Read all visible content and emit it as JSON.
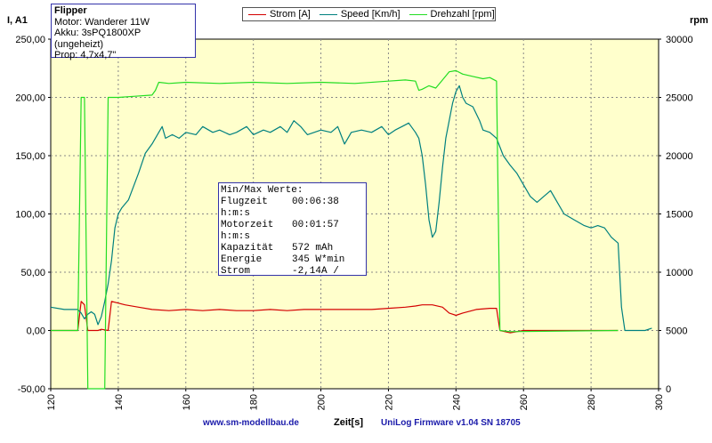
{
  "info": {
    "title": "Flipper",
    "line1": "Motor: Wanderer 11W",
    "line2": "Akku: 3sPQ1800XP (ungeheizt)",
    "line3": "Prop: 4,7x4,7\""
  },
  "legend": [
    {
      "label": "Strom [A]",
      "color": "#d40000"
    },
    {
      "label": "Speed [Km/h]",
      "color": "#00807f"
    },
    {
      "label": "Drehzahl [rpm]",
      "color": "#22dd22"
    }
  ],
  "stats": {
    "title": "Min/Max Werte:",
    "rows": [
      {
        "label": "Flugzeit",
        "value": "00:06:38"
      },
      {
        "label": "h:m:s",
        "value": ""
      },
      {
        "label": "Motorzeit",
        "value": "00:01:57"
      },
      {
        "label": "h:m:s",
        "value": ""
      },
      {
        "label": "Kapazität",
        "value": "572 mAh"
      },
      {
        "label": "Energie",
        "value": "345 W*min"
      },
      {
        "label": "Strom",
        "value": "-2,14A /"
      }
    ]
  },
  "footer": {
    "left": "www.sm-modellbau.de",
    "right": "UniLog Firmware v1.04 SN 18705"
  },
  "chart_data": {
    "type": "line",
    "xlabel": "Zeit[s]",
    "ylabel_left": "I, A1",
    "ylabel_right": "rpm",
    "xlim": [
      120,
      300
    ],
    "ylim_left": [
      -50,
      250
    ],
    "ylim_right": [
      0,
      30000
    ],
    "x_ticks": [
      120,
      140,
      160,
      180,
      200,
      220,
      240,
      260,
      280,
      300
    ],
    "y_ticks_left": [
      "-50,00",
      "0,00",
      "50,00",
      "100,00",
      "150,00",
      "200,00",
      "250,00"
    ],
    "y_ticks_right": [
      "0",
      "5000",
      "10000",
      "15000",
      "20000",
      "25000",
      "30000"
    ],
    "grid": true,
    "legend_position": "top-center",
    "series": [
      {
        "name": "Strom [A]",
        "axis": "left",
        "color": "#d40000",
        "points": [
          [
            120,
            0
          ],
          [
            128,
            0
          ],
          [
            129,
            25
          ],
          [
            130,
            22
          ],
          [
            131,
            0
          ],
          [
            134,
            0
          ],
          [
            135,
            1
          ],
          [
            137,
            0
          ],
          [
            138,
            25
          ],
          [
            142,
            22
          ],
          [
            146,
            20
          ],
          [
            150,
            18
          ],
          [
            155,
            17
          ],
          [
            160,
            18
          ],
          [
            165,
            17
          ],
          [
            170,
            18
          ],
          [
            175,
            17
          ],
          [
            180,
            17
          ],
          [
            185,
            18
          ],
          [
            190,
            17
          ],
          [
            195,
            18
          ],
          [
            200,
            18
          ],
          [
            205,
            18
          ],
          [
            210,
            18
          ],
          [
            215,
            18
          ],
          [
            220,
            19
          ],
          [
            225,
            20
          ],
          [
            228,
            21
          ],
          [
            230,
            22
          ],
          [
            233,
            22
          ],
          [
            236,
            20
          ],
          [
            238,
            15
          ],
          [
            240,
            13
          ],
          [
            242,
            15
          ],
          [
            246,
            18
          ],
          [
            250,
            19
          ],
          [
            252,
            19
          ],
          [
            253,
            0
          ],
          [
            256,
            -2
          ],
          [
            260,
            0
          ],
          [
            270,
            0
          ],
          [
            280,
            0
          ],
          [
            288,
            0
          ]
        ]
      },
      {
        "name": "Speed [Km/h]",
        "axis": "left",
        "color": "#00807f",
        "points": [
          [
            120,
            20
          ],
          [
            124,
            18
          ],
          [
            128,
            18
          ],
          [
            129,
            15
          ],
          [
            130,
            10
          ],
          [
            131,
            14
          ],
          [
            132,
            16
          ],
          [
            133,
            14
          ],
          [
            134,
            5
          ],
          [
            135,
            12
          ],
          [
            136,
            25
          ],
          [
            137,
            40
          ],
          [
            138,
            60
          ],
          [
            139,
            88
          ],
          [
            140,
            100
          ],
          [
            141,
            105
          ],
          [
            143,
            112
          ],
          [
            146,
            135
          ],
          [
            148,
            152
          ],
          [
            150,
            160
          ],
          [
            152,
            170
          ],
          [
            153,
            175
          ],
          [
            154,
            165
          ],
          [
            156,
            168
          ],
          [
            158,
            165
          ],
          [
            160,
            170
          ],
          [
            163,
            168
          ],
          [
            165,
            175
          ],
          [
            168,
            170
          ],
          [
            170,
            172
          ],
          [
            173,
            168
          ],
          [
            175,
            170
          ],
          [
            178,
            175
          ],
          [
            180,
            168
          ],
          [
            183,
            172
          ],
          [
            185,
            170
          ],
          [
            188,
            175
          ],
          [
            190,
            170
          ],
          [
            192,
            180
          ],
          [
            194,
            175
          ],
          [
            196,
            168
          ],
          [
            198,
            170
          ],
          [
            200,
            172
          ],
          [
            203,
            170
          ],
          [
            205,
            175
          ],
          [
            207,
            160
          ],
          [
            209,
            170
          ],
          [
            212,
            172
          ],
          [
            215,
            170
          ],
          [
            218,
            175
          ],
          [
            220,
            168
          ],
          [
            222,
            172
          ],
          [
            224,
            175
          ],
          [
            226,
            178
          ],
          [
            228,
            170
          ],
          [
            229,
            165
          ],
          [
            230,
            150
          ],
          [
            231,
            125
          ],
          [
            232,
            95
          ],
          [
            233,
            80
          ],
          [
            234,
            85
          ],
          [
            235,
            110
          ],
          [
            236,
            140
          ],
          [
            237,
            165
          ],
          [
            238,
            180
          ],
          [
            239,
            195
          ],
          [
            240,
            205
          ],
          [
            241,
            210
          ],
          [
            242,
            200
          ],
          [
            243,
            195
          ],
          [
            245,
            192
          ],
          [
            247,
            180
          ],
          [
            248,
            172
          ],
          [
            250,
            170
          ],
          [
            252,
            165
          ],
          [
            254,
            150
          ],
          [
            256,
            142
          ],
          [
            258,
            135
          ],
          [
            260,
            125
          ],
          [
            262,
            115
          ],
          [
            264,
            110
          ],
          [
            266,
            115
          ],
          [
            268,
            120
          ],
          [
            270,
            110
          ],
          [
            272,
            100
          ],
          [
            275,
            95
          ],
          [
            278,
            90
          ],
          [
            280,
            88
          ],
          [
            282,
            90
          ],
          [
            284,
            88
          ],
          [
            286,
            80
          ],
          [
            288,
            75
          ],
          [
            289,
            20
          ],
          [
            290,
            0
          ],
          [
            296,
            0
          ],
          [
            298,
            2
          ]
        ]
      },
      {
        "name": "Drehzahl [rpm]",
        "axis": "right",
        "color": "#22dd22",
        "points": [
          [
            120,
            5000
          ],
          [
            128,
            5000
          ],
          [
            129,
            25000
          ],
          [
            130,
            25000
          ],
          [
            131,
            0
          ],
          [
            136,
            0
          ],
          [
            137,
            25000
          ],
          [
            140,
            25000
          ],
          [
            145,
            25100
          ],
          [
            150,
            25200
          ],
          [
            151,
            25600
          ],
          [
            152,
            26300
          ],
          [
            155,
            26200
          ],
          [
            160,
            26300
          ],
          [
            170,
            26200
          ],
          [
            180,
            26300
          ],
          [
            190,
            26200
          ],
          [
            200,
            26300
          ],
          [
            210,
            26200
          ],
          [
            220,
            26400
          ],
          [
            225,
            26500
          ],
          [
            228,
            26400
          ],
          [
            229,
            25600
          ],
          [
            230,
            25700
          ],
          [
            232,
            26000
          ],
          [
            234,
            25800
          ],
          [
            236,
            26500
          ],
          [
            238,
            27200
          ],
          [
            240,
            27300
          ],
          [
            242,
            27000
          ],
          [
            245,
            26800
          ],
          [
            248,
            26600
          ],
          [
            250,
            26700
          ],
          [
            252,
            26400
          ],
          [
            253,
            5000
          ],
          [
            256,
            4900
          ],
          [
            288,
            5000
          ]
        ]
      }
    ]
  }
}
